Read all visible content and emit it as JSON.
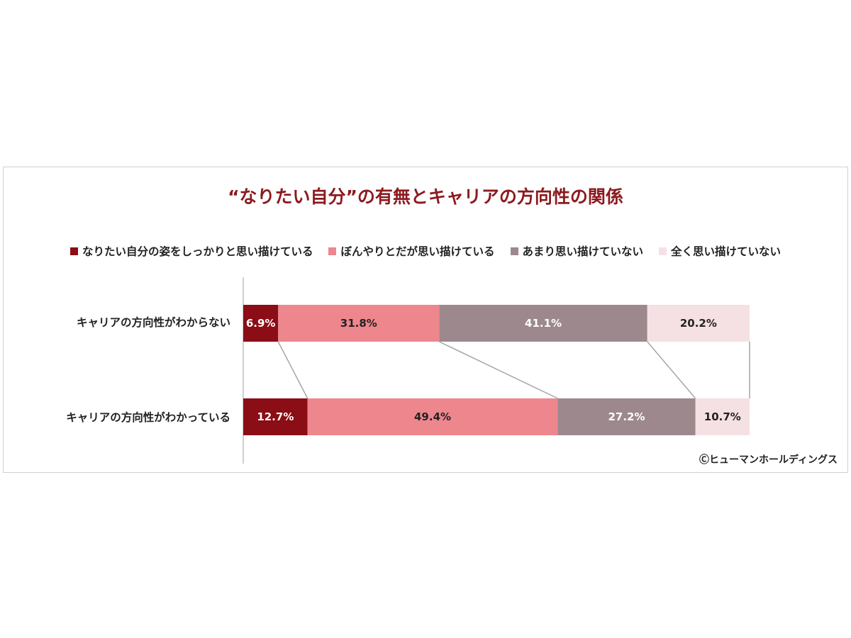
{
  "chart_data": {
    "type": "bar",
    "stacked": true,
    "orientation": "horizontal",
    "title": "“なりたい自分”の有無とキャリアの方向性の関係",
    "categories": [
      "キャリアの方向性がわからない",
      "キャリアの方向性がわかっている"
    ],
    "series": [
      {
        "name": "なりたい自分の姿をしっかりと思い描けている",
        "values": [
          6.9,
          12.7
        ],
        "color": "#8b0d15",
        "label_color": "#ffffff"
      },
      {
        "name": "ぼんやりとだが思い描けている",
        "values": [
          31.8,
          49.4
        ],
        "color": "#ee868d",
        "label_color": "#222222"
      },
      {
        "name": "あまり思い描けていない",
        "values": [
          41.1,
          27.2
        ],
        "color": "#9c888d",
        "label_color": "#ffffff"
      },
      {
        "name": "全く思い描けていない",
        "values": [
          20.2,
          10.7
        ],
        "color": "#f5e0e3",
        "label_color": "#222222"
      }
    ],
    "value_labels": [
      [
        "6.9%",
        "31.8%",
        "41.1%",
        "20.2%"
      ],
      [
        "12.7%",
        "49.4%",
        "27.2%",
        "10.7%"
      ]
    ],
    "xlim": [
      0,
      100
    ],
    "legend_position": "top",
    "series_lines": true
  },
  "credit": "Ⓒヒューマンホールディングス"
}
